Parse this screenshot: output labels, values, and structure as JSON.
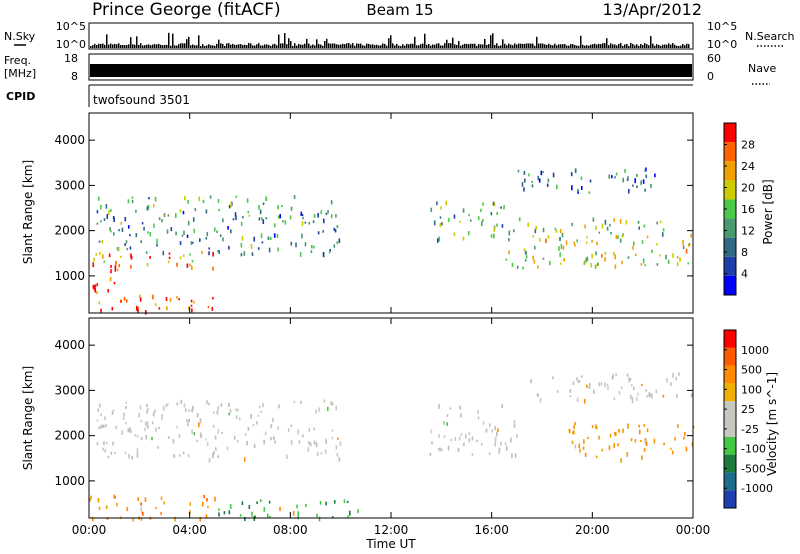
{
  "header": {
    "site": "Prince George (fitACF)",
    "beam": "Beam 15",
    "date": "13/Apr/2012"
  },
  "strips": {
    "nsky": {
      "label": "N.Sky",
      "ticks": [
        "10^5",
        "10^0"
      ]
    },
    "nsearch": {
      "label": "N.Search"
    },
    "freq": {
      "label_line1": "Freq.",
      "label_line2": "[MHz]",
      "ticks": [
        "18",
        "8"
      ]
    },
    "nave": {
      "label": "Nave",
      "ticks": [
        "60",
        "0"
      ]
    },
    "cpid": {
      "label": "CPID",
      "value": "twofsound 3501"
    }
  },
  "colors": {
    "power_scale": [
      "#0000ff",
      "#1f3fa8",
      "#2f6b84",
      "#4a9a70",
      "#4cc84a",
      "#cccc00",
      "#f0a000",
      "#ff6400",
      "#ff0000"
    ],
    "velocity_scale": [
      "#ff0000",
      "#ff5a00",
      "#ff8c00",
      "#f0b000",
      "#c8c8c0",
      "#c8c8c0",
      "#44c844",
      "#1e7a3c",
      "#1f6b8c",
      "#1f3fae"
    ]
  },
  "chart_data": [
    {
      "type": "heatmap",
      "title": "Power",
      "xlabel": "Time UT",
      "ylabel": "Slant Range [km]",
      "x_ticks": [
        "00:00",
        "04:00",
        "08:00",
        "12:00",
        "16:00",
        "20:00",
        "00:00"
      ],
      "y_ticks": [
        "1000",
        "2000",
        "3000",
        "4000"
      ],
      "ylim": [
        180,
        4600
      ],
      "colorbar": {
        "label": "Power [dB]",
        "tick_labels": [
          "4",
          "8",
          "12",
          "16",
          "20",
          "24",
          "28"
        ],
        "range": [
          0,
          32
        ]
      },
      "bands": [
        {
          "t": [
            0.3,
            10
          ],
          "r0": 1500,
          "r1": 2800,
          "level": 0.35
        },
        {
          "t": [
            0,
            5
          ],
          "r0": 1150,
          "r1": 1600,
          "level": 0.75
        },
        {
          "t": [
            0,
            1
          ],
          "r0": 600,
          "r1": 1400,
          "level": 0.9
        },
        {
          "t": [
            0,
            5
          ],
          "r0": 180,
          "r1": 600,
          "level": 0.85
        },
        {
          "t": [
            13.5,
            16.5
          ],
          "r0": 1800,
          "r1": 2700,
          "level": 0.4
        },
        {
          "t": [
            16.5,
            24
          ],
          "r0": 1200,
          "r1": 2300,
          "level": 0.55
        },
        {
          "t": [
            17,
            22.5
          ],
          "r0": 2800,
          "r1": 3400,
          "level": 0.25
        }
      ]
    },
    {
      "type": "heatmap",
      "title": "Velocity",
      "xlabel": "Time UT",
      "ylabel": "Slant Range [km]",
      "x_ticks": [
        "00:00",
        "04:00",
        "08:00",
        "12:00",
        "16:00",
        "20:00",
        "00:00"
      ],
      "y_ticks": [
        "1000",
        "2000",
        "3000",
        "4000"
      ],
      "ylim": [
        180,
        4600
      ],
      "colorbar": {
        "label": "Velocity [m s^-1]",
        "tick_labels": [
          "1000",
          "500",
          "100",
          "25",
          "-25",
          "-100",
          "-500",
          "-1000"
        ]
      },
      "bands": [
        {
          "t": [
            0.3,
            10
          ],
          "r0": 1500,
          "r1": 2800,
          "kind": "grey"
        },
        {
          "t": [
            0,
            5
          ],
          "r0": 180,
          "r1": 700,
          "kind": "orange"
        },
        {
          "t": [
            5,
            11
          ],
          "r0": 180,
          "r1": 600,
          "kind": "green"
        },
        {
          "t": [
            13.5,
            17
          ],
          "r0": 1600,
          "r1": 2700,
          "kind": "grey"
        },
        {
          "t": [
            19,
            24
          ],
          "r0": 1500,
          "r1": 2300,
          "kind": "orange"
        },
        {
          "t": [
            17.5,
            24
          ],
          "r0": 2800,
          "r1": 3400,
          "kind": "grey"
        }
      ]
    }
  ]
}
